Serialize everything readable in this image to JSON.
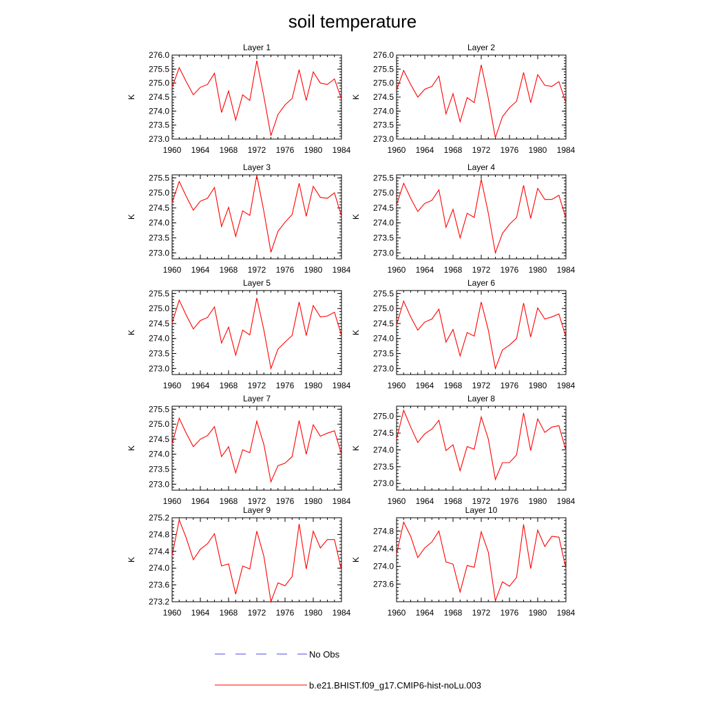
{
  "title": "soil temperature",
  "legend": {
    "items": [
      {
        "label": "No Obs",
        "color": "#4a4adf",
        "dash": true
      },
      {
        "label": "b.e21.BHIST.f09_g17.CMIP6-hist-noLu.003",
        "color": "#ff0000",
        "dash": false
      }
    ]
  },
  "chart_data": [
    {
      "type": "line",
      "title": "Layer 1",
      "ylabel": "K",
      "xlabel": "",
      "xlim": [
        1960,
        1984
      ],
      "ylim": [
        273.0,
        276.0
      ],
      "xticks": [
        1960,
        1964,
        1968,
        1972,
        1976,
        1980,
        1984
      ],
      "yticks": [
        273.0,
        273.5,
        274.0,
        274.5,
        275.0,
        275.5,
        276.0
      ],
      "x": [
        1960,
        1961,
        1962,
        1963,
        1964,
        1965,
        1966,
        1967,
        1968,
        1969,
        1970,
        1971,
        1972,
        1973,
        1974,
        1975,
        1976,
        1977,
        1978,
        1979,
        1980,
        1981,
        1982,
        1983,
        1984
      ],
      "series": [
        {
          "name": "b.e21.BHIST.f09_g17.CMIP6-hist-noLu.003",
          "color": "#ff0000",
          "values": [
            274.85,
            275.55,
            275.05,
            274.58,
            274.85,
            274.95,
            275.35,
            273.95,
            274.72,
            273.68,
            274.58,
            274.38,
            275.8,
            274.52,
            273.12,
            273.88,
            274.22,
            274.45,
            275.48,
            274.38,
            275.4,
            275.0,
            274.95,
            275.15,
            274.42
          ]
        }
      ]
    },
    {
      "type": "line",
      "title": "Layer 2",
      "ylabel": "K",
      "xlabel": "",
      "xlim": [
        1960,
        1984
      ],
      "ylim": [
        273.0,
        276.0
      ],
      "xticks": [
        1960,
        1964,
        1968,
        1972,
        1976,
        1980,
        1984
      ],
      "yticks": [
        273.0,
        273.5,
        274.0,
        274.5,
        275.0,
        275.5,
        276.0
      ],
      "x": [
        1960,
        1961,
        1962,
        1963,
        1964,
        1965,
        1966,
        1967,
        1968,
        1969,
        1970,
        1971,
        1972,
        1973,
        1974,
        1975,
        1976,
        1977,
        1978,
        1979,
        1980,
        1981,
        1982,
        1983,
        1984
      ],
      "series": [
        {
          "name": "b.e21.BHIST.f09_g17.CMIP6-hist-noLu.003",
          "color": "#ff0000",
          "values": [
            274.75,
            275.45,
            274.95,
            274.5,
            274.78,
            274.88,
            275.25,
            273.9,
            274.62,
            273.62,
            274.48,
            274.3,
            275.65,
            274.45,
            273.05,
            273.8,
            274.12,
            274.35,
            275.38,
            274.3,
            275.3,
            274.92,
            274.88,
            275.05,
            274.3
          ]
        }
      ]
    },
    {
      "type": "line",
      "title": "Layer 3",
      "ylabel": "K",
      "xlabel": "",
      "xlim": [
        1960,
        1984
      ],
      "ylim": [
        272.8,
        275.6
      ],
      "xticks": [
        1960,
        1964,
        1968,
        1972,
        1976,
        1980,
        1984
      ],
      "yticks": [
        273.0,
        273.5,
        274.0,
        274.5,
        275.0,
        275.5
      ],
      "x": [
        1960,
        1961,
        1962,
        1963,
        1964,
        1965,
        1966,
        1967,
        1968,
        1969,
        1970,
        1971,
        1972,
        1973,
        1974,
        1975,
        1976,
        1977,
        1978,
        1979,
        1980,
        1981,
        1982,
        1983,
        1984
      ],
      "series": [
        {
          "name": "b.e21.BHIST.f09_g17.CMIP6-hist-noLu.003",
          "color": "#ff0000",
          "values": [
            274.68,
            275.38,
            274.88,
            274.42,
            274.72,
            274.82,
            275.18,
            273.88,
            274.52,
            273.55,
            274.4,
            274.25,
            275.58,
            274.38,
            273.02,
            273.72,
            274.02,
            274.28,
            275.32,
            274.22,
            275.22,
            274.85,
            274.82,
            275.0,
            274.22
          ]
        }
      ]
    },
    {
      "type": "line",
      "title": "Layer 4",
      "ylabel": "K",
      "xlabel": "",
      "xlim": [
        1960,
        1984
      ],
      "ylim": [
        272.8,
        275.6
      ],
      "xticks": [
        1960,
        1964,
        1968,
        1972,
        1976,
        1980,
        1984
      ],
      "yticks": [
        273.0,
        273.5,
        274.0,
        274.5,
        275.0,
        275.5
      ],
      "x": [
        1960,
        1961,
        1962,
        1963,
        1964,
        1965,
        1966,
        1967,
        1968,
        1969,
        1970,
        1971,
        1972,
        1973,
        1974,
        1975,
        1976,
        1977,
        1978,
        1979,
        1980,
        1981,
        1982,
        1983,
        1984
      ],
      "series": [
        {
          "name": "b.e21.BHIST.f09_g17.CMIP6-hist-noLu.003",
          "color": "#ff0000",
          "values": [
            274.6,
            275.32,
            274.82,
            274.38,
            274.65,
            274.75,
            275.1,
            273.85,
            274.45,
            273.5,
            274.32,
            274.18,
            275.45,
            274.32,
            273.0,
            273.65,
            273.95,
            274.18,
            275.25,
            274.15,
            275.15,
            274.78,
            274.78,
            274.92,
            274.15
          ]
        }
      ]
    },
    {
      "type": "line",
      "title": "Layer 5",
      "ylabel": "K",
      "xlabel": "",
      "xlim": [
        1960,
        1984
      ],
      "ylim": [
        272.8,
        275.6
      ],
      "xticks": [
        1960,
        1964,
        1968,
        1972,
        1976,
        1980,
        1984
      ],
      "yticks": [
        273.0,
        273.5,
        274.0,
        274.5,
        275.0,
        275.5
      ],
      "x": [
        1960,
        1961,
        1962,
        1963,
        1964,
        1965,
        1966,
        1967,
        1968,
        1969,
        1970,
        1971,
        1972,
        1973,
        1974,
        1975,
        1976,
        1977,
        1978,
        1979,
        1980,
        1981,
        1982,
        1983,
        1984
      ],
      "series": [
        {
          "name": "b.e21.BHIST.f09_g17.CMIP6-hist-noLu.003",
          "color": "#ff0000",
          "values": [
            274.52,
            275.28,
            274.78,
            274.32,
            274.6,
            274.7,
            275.05,
            273.85,
            274.38,
            273.45,
            274.28,
            274.12,
            275.35,
            274.28,
            273.0,
            273.65,
            273.88,
            274.1,
            275.22,
            274.1,
            275.1,
            274.72,
            274.75,
            274.88,
            274.1
          ]
        }
      ]
    },
    {
      "type": "line",
      "title": "Layer 6",
      "ylabel": "K",
      "xlabel": "",
      "xlim": [
        1960,
        1984
      ],
      "ylim": [
        272.8,
        275.6
      ],
      "xticks": [
        1960,
        1964,
        1968,
        1972,
        1976,
        1980,
        1984
      ],
      "yticks": [
        273.0,
        273.5,
        274.0,
        274.5,
        275.0,
        275.5
      ],
      "x": [
        1960,
        1961,
        1962,
        1963,
        1964,
        1965,
        1966,
        1967,
        1968,
        1969,
        1970,
        1971,
        1972,
        1973,
        1974,
        1975,
        1976,
        1977,
        1978,
        1979,
        1980,
        1981,
        1982,
        1983,
        1984
      ],
      "series": [
        {
          "name": "b.e21.BHIST.f09_g17.CMIP6-hist-noLu.003",
          "color": "#ff0000",
          "values": [
            274.45,
            275.25,
            274.72,
            274.28,
            274.55,
            274.65,
            274.98,
            273.88,
            274.3,
            273.42,
            274.2,
            274.08,
            275.22,
            274.28,
            273.0,
            273.62,
            273.78,
            274.0,
            275.18,
            274.05,
            275.02,
            274.65,
            274.72,
            274.82,
            274.05
          ]
        }
      ]
    },
    {
      "type": "line",
      "title": "Layer 7",
      "ylabel": "K",
      "xlabel": "",
      "xlim": [
        1960,
        1984
      ],
      "ylim": [
        272.8,
        275.6
      ],
      "xticks": [
        1960,
        1964,
        1968,
        1972,
        1976,
        1980,
        1984
      ],
      "yticks": [
        273.0,
        273.5,
        274.0,
        274.5,
        275.0,
        275.5
      ],
      "x": [
        1960,
        1961,
        1962,
        1963,
        1964,
        1965,
        1966,
        1967,
        1968,
        1969,
        1970,
        1971,
        1972,
        1973,
        1974,
        1975,
        1976,
        1977,
        1978,
        1979,
        1980,
        1981,
        1982,
        1983,
        1984
      ],
      "series": [
        {
          "name": "b.e21.BHIST.f09_g17.CMIP6-hist-noLu.003",
          "color": "#ff0000",
          "values": [
            274.35,
            275.2,
            274.7,
            274.25,
            274.5,
            274.62,
            274.92,
            273.92,
            274.25,
            273.38,
            274.15,
            274.05,
            275.1,
            274.32,
            273.08,
            273.62,
            273.7,
            273.92,
            275.12,
            274.0,
            274.98,
            274.6,
            274.7,
            274.78,
            274.0
          ]
        }
      ]
    },
    {
      "type": "line",
      "title": "Layer 8",
      "ylabel": "K",
      "xlabel": "",
      "xlim": [
        1960,
        1984
      ],
      "ylim": [
        272.8,
        275.3
      ],
      "xticks": [
        1960,
        1964,
        1968,
        1972,
        1976,
        1980,
        1984
      ],
      "yticks": [
        273.0,
        273.5,
        274.0,
        274.5,
        275.0
      ],
      "x": [
        1960,
        1961,
        1962,
        1963,
        1964,
        1965,
        1966,
        1967,
        1968,
        1969,
        1970,
        1971,
        1972,
        1973,
        1974,
        1975,
        1976,
        1977,
        1978,
        1979,
        1980,
        1981,
        1982,
        1983,
        1984
      ],
      "series": [
        {
          "name": "b.e21.BHIST.f09_g17.CMIP6-hist-noLu.003",
          "color": "#ff0000",
          "values": [
            274.32,
            275.18,
            274.68,
            274.22,
            274.48,
            274.62,
            274.88,
            273.98,
            274.15,
            273.38,
            274.1,
            274.02,
            274.98,
            274.32,
            273.12,
            273.62,
            273.62,
            273.85,
            275.1,
            273.98,
            274.92,
            274.52,
            274.68,
            274.72,
            273.98
          ]
        }
      ]
    },
    {
      "type": "line",
      "title": "Layer 9",
      "ylabel": "K",
      "xlabel": "",
      "xlim": [
        1960,
        1984
      ],
      "ylim": [
        273.2,
        275.2
      ],
      "xticks": [
        1960,
        1964,
        1968,
        1972,
        1976,
        1980,
        1984
      ],
      "yticks": [
        273.2,
        273.6,
        274.0,
        274.4,
        274.8,
        275.2
      ],
      "x": [
        1960,
        1961,
        1962,
        1963,
        1964,
        1965,
        1966,
        1967,
        1968,
        1969,
        1970,
        1971,
        1972,
        1973,
        1974,
        1975,
        1976,
        1977,
        1978,
        1979,
        1980,
        1981,
        1982,
        1983,
        1984
      ],
      "series": [
        {
          "name": "b.e21.BHIST.f09_g17.CMIP6-hist-noLu.003",
          "color": "#ff0000",
          "values": [
            274.3,
            275.15,
            274.72,
            274.2,
            274.45,
            274.58,
            274.82,
            274.05,
            274.1,
            273.38,
            274.05,
            273.98,
            274.88,
            274.28,
            273.2,
            273.65,
            273.58,
            273.8,
            275.05,
            273.98,
            274.88,
            274.48,
            274.68,
            274.68,
            273.95
          ]
        }
      ]
    },
    {
      "type": "line",
      "title": "Layer 10",
      "ylabel": "K",
      "xlabel": "",
      "xlim": [
        1960,
        1984
      ],
      "ylim": [
        273.2,
        275.1
      ],
      "xticks": [
        1960,
        1964,
        1968,
        1972,
        1976,
        1980,
        1984
      ],
      "yticks": [
        273.6,
        274.0,
        274.4,
        274.8
      ],
      "x": [
        1960,
        1961,
        1962,
        1963,
        1964,
        1965,
        1966,
        1967,
        1968,
        1969,
        1970,
        1971,
        1972,
        1973,
        1974,
        1975,
        1976,
        1977,
        1978,
        1979,
        1980,
        1981,
        1982,
        1983,
        1984
      ],
      "series": [
        {
          "name": "b.e21.BHIST.f09_g17.CMIP6-hist-noLu.003",
          "color": "#ff0000",
          "values": [
            274.28,
            275.0,
            274.68,
            274.2,
            274.42,
            274.55,
            274.8,
            274.1,
            274.05,
            273.42,
            274.02,
            273.98,
            274.78,
            274.32,
            273.22,
            273.65,
            273.55,
            273.75,
            274.95,
            273.95,
            274.82,
            274.45,
            274.68,
            274.66,
            273.95
          ]
        }
      ]
    }
  ]
}
